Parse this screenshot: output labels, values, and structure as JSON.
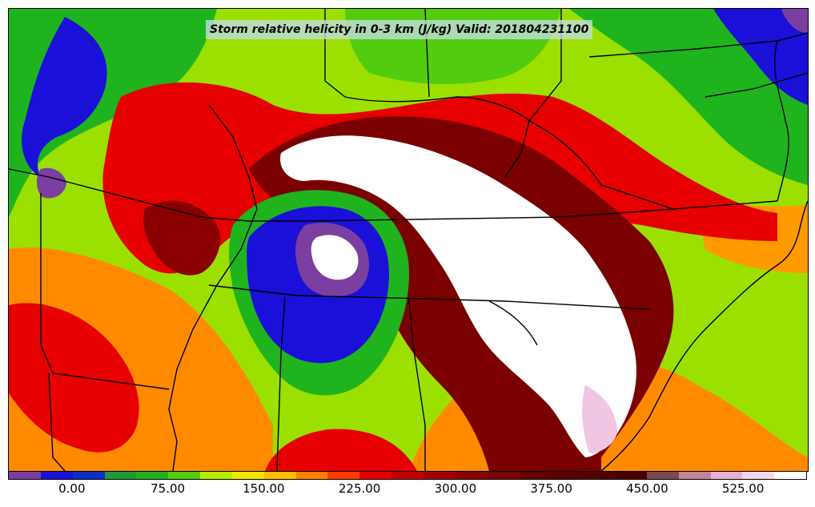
{
  "title": "Storm relative helicity in 0-3 km (J/kg) Valid: 201804231100",
  "colorbar": {
    "colors": [
      "#7a3fa0",
      "#1a10d8",
      "#0a2fc8",
      "#1c9a3a",
      "#1fb41e",
      "#53cc10",
      "#b8ea00",
      "#f0e800",
      "#ffbf00",
      "#ff8000",
      "#ff3c00",
      "#e80000",
      "#c40000",
      "#a40000",
      "#8a0000",
      "#780000",
      "#660000",
      "#5a0000",
      "#500000",
      "#4b0000",
      "#7a4a50",
      "#c4859a",
      "#e6b2d2",
      "#f5d4ec",
      "#ffffff"
    ],
    "tick_labels": [
      "0.00",
      "75.00",
      "150.00",
      "225.00",
      "300.00",
      "375.00",
      "450.00",
      "525.00"
    ],
    "tick_values": [
      0,
      75,
      150,
      225,
      300,
      375,
      450,
      525
    ],
    "min": -50,
    "max": 575
  },
  "legend_colors": {
    "purple": "#7a3fa0",
    "blue": "#1a10d8",
    "green": "#1c9a3a",
    "yellow_green": "#b8ea00",
    "orange": "#ff8000",
    "red": "#e80000",
    "dark_red": "#5a0000",
    "white": "#ffffff"
  }
}
